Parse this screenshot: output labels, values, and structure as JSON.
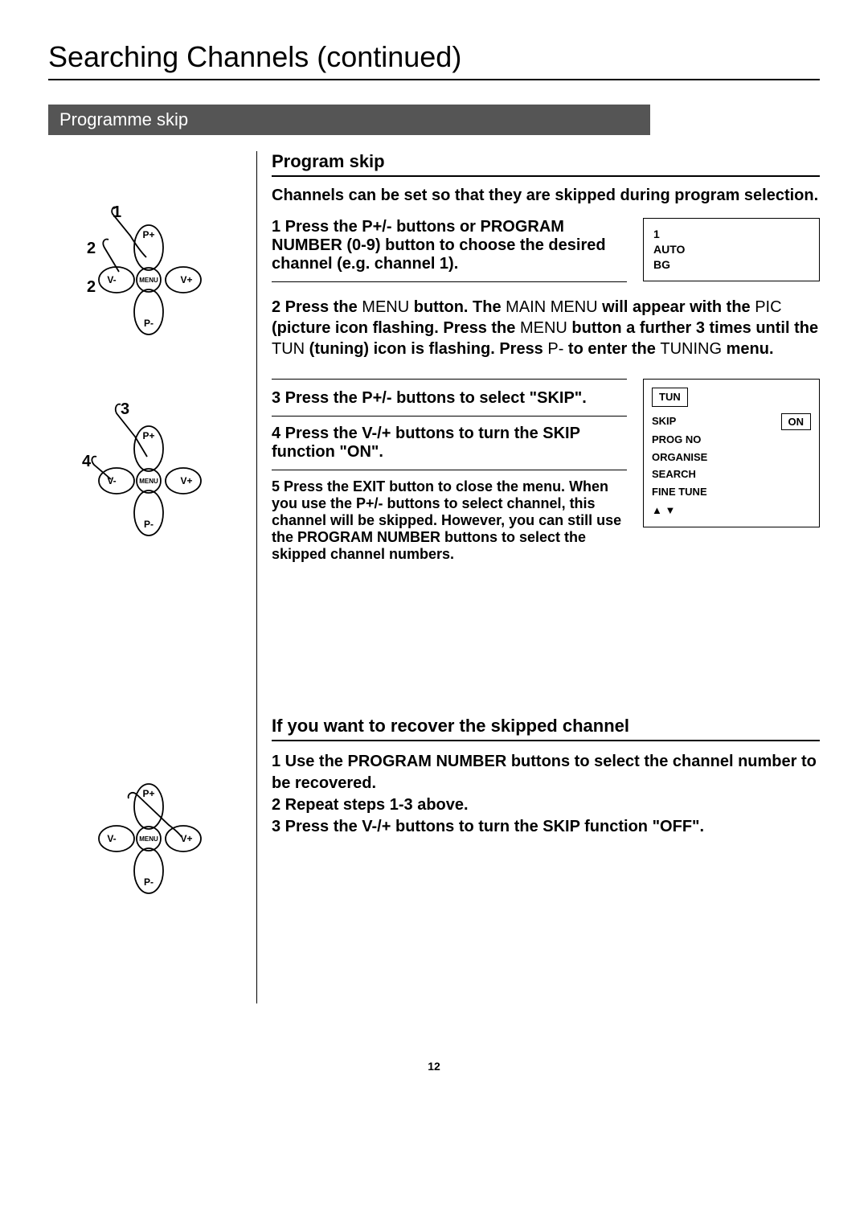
{
  "page": {
    "title": "Searching Channels (continued)",
    "section_bar": "Programme skip",
    "page_number": "12",
    "colors": {
      "bar_bg": "#555555",
      "bar_fg": "#ffffff",
      "text": "#000000",
      "page_bg": "#ffffff"
    }
  },
  "program_skip": {
    "heading": "Program skip",
    "intro": "Channels can be set so that they are skipped during program selection.",
    "step1": "1 Press the P+/- buttons or PROGRAM NUMBER (0-9) button to choose the desired channel (e.g. channel 1).",
    "step2_parts": {
      "a": "2 Press the ",
      "b": "MENU",
      "c": " button. The ",
      "d": "MAIN MENU",
      "e": " will appear with the ",
      "f": "PIC",
      "g": " (picture icon flashing. Press the ",
      "h": "MENU",
      "i": " button a further 3 times until the ",
      "j": "TUN",
      "k": " (tuning) icon is flashing. Press ",
      "l": "P-",
      "m": " to enter the ",
      "n": "TUNING",
      "o": " menu."
    },
    "step3": "3 Press the P+/- buttons to select \"SKIP\".",
    "step4": "4 Press the V-/+ buttons to turn the SKIP function \"ON\".",
    "step5": "5 Press the EXIT button to close the menu. When you use the P+/- buttons to select channel, this channel will be skipped. However, you can still use the PROGRAM NUMBER buttons to select the skipped channel numbers."
  },
  "info_box1": {
    "line1": "1",
    "line2": "AUTO",
    "line3": "BG"
  },
  "menu_box": {
    "tun_label": "TUN",
    "rows": [
      {
        "label": "SKIP",
        "value": "ON",
        "boxed": true
      },
      {
        "label": "PROG NO",
        "value": "",
        "boxed": false
      },
      {
        "label": "ORGANISE",
        "value": "",
        "boxed": false
      },
      {
        "label": "SEARCH",
        "value": "",
        "boxed": false
      },
      {
        "label": "FINE TUNE",
        "value": "",
        "boxed": false
      }
    ],
    "arrows": "▲  ▼"
  },
  "recover": {
    "heading": "If you want to recover the skipped channel",
    "step1": "1 Use the PROGRAM NUMBER buttons to select the channel number to be recovered.",
    "step2": "2 Repeat steps 1-3 above.",
    "step3": "3 Press the V-/+ buttons to turn the SKIP function \"OFF\"."
  },
  "remote_labels": {
    "p_plus": "P+",
    "p_minus": "P-",
    "v_plus": "V+",
    "v_minus": "V-",
    "menu": "MENU"
  },
  "diagram_steps": {
    "d1_top": "1",
    "d1_mid": "2",
    "d1_low": "2",
    "d2_top": "3",
    "d2_left": "4"
  }
}
